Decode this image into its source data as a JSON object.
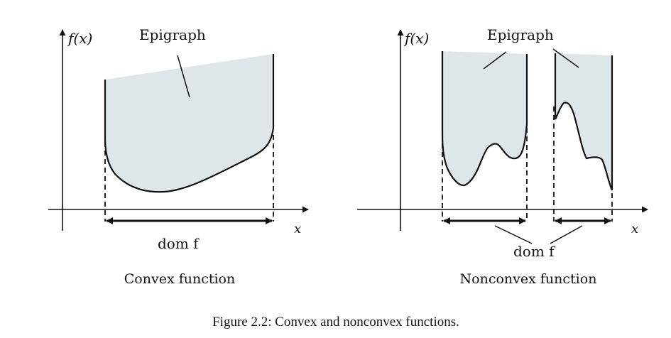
{
  "left_panel": {
    "y_axis_label": "f(x)",
    "x_axis_label": "x",
    "epigraph_label": "Epigraph",
    "domain_label": "dom f",
    "subtitle": "Convex function"
  },
  "right_panel": {
    "y_axis_label": "f(x)",
    "x_axis_label": "x",
    "epigraph_label": "Epigraph",
    "domain_label": "dom f",
    "subtitle": "Nonconvex function"
  },
  "caption": "Figure 2.2: Convex and nonconvex functions.",
  "colors": {
    "epigraph_fill": "#dfe6ea",
    "line": "#111111",
    "background": "#ffffff"
  }
}
